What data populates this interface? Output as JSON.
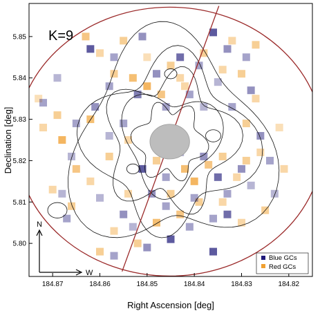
{
  "chart_data": {
    "type": "heatmap",
    "panel_label": "K=9",
    "xlabel": "Right Ascension [deg]",
    "ylabel": "Declination [deg]",
    "xlim": [
      184.875,
      184.815
    ],
    "ylim": [
      5.792,
      5.858
    ],
    "x_axis_reversed": true,
    "xticks": [
      184.87,
      184.86,
      184.85,
      184.84,
      184.83,
      184.82
    ],
    "xtick_labels": [
      "184.87",
      "184.86",
      "184.85",
      "184.84",
      "184.83",
      "184.82"
    ],
    "yticks": [
      5.8,
      5.81,
      5.82,
      5.83,
      5.84,
      5.85
    ],
    "ytick_labels": [
      "5.80",
      "5.81",
      "5.82",
      "5.83",
      "5.84",
      "5.85"
    ],
    "grid": false,
    "legend_position": "bottom-right",
    "series": [
      {
        "name": "Blue GCs",
        "color": "#1f1a7a"
      },
      {
        "name": "Red GCs",
        "color": "#f0a030"
      }
    ],
    "outer_circle": {
      "center": [
        184.8452,
        5.8246
      ],
      "radius_deg": 0.0325,
      "color": "#9b2a2a"
    },
    "masked_center": {
      "center": [
        184.8452,
        5.8246
      ],
      "radius_deg": 0.0042,
      "color": "#bdbdbd"
    },
    "dividing_line": {
      "from": [
        184.8553,
        5.7932
      ],
      "to": [
        184.8348,
        5.8574
      ],
      "color": "#9b2a2a"
    },
    "compass": {
      "north_label": "N",
      "west_label": "W"
    },
    "blue_cells": [
      [
        184.862,
        5.847,
        0.9
      ],
      [
        184.858,
        5.838,
        0.5
      ],
      [
        184.852,
        5.836,
        0.7
      ],
      [
        184.848,
        5.841,
        0.6
      ],
      [
        184.846,
        5.833,
        0.5
      ],
      [
        184.843,
        5.845,
        0.8
      ],
      [
        184.839,
        5.843,
        0.5
      ],
      [
        184.836,
        5.851,
        0.9
      ],
      [
        184.835,
        5.839,
        0.4
      ],
      [
        184.833,
        5.847,
        0.6
      ],
      [
        184.829,
        5.845,
        0.5
      ],
      [
        184.828,
        5.837,
        0.6
      ],
      [
        184.855,
        5.829,
        0.5
      ],
      [
        184.858,
        5.826,
        0.4
      ],
      [
        184.861,
        5.833,
        0.6
      ],
      [
        184.865,
        5.829,
        0.5
      ],
      [
        184.866,
        5.821,
        0.4
      ],
      [
        184.851,
        5.818,
        0.9
      ],
      [
        184.846,
        5.816,
        0.5
      ],
      [
        184.843,
        5.822,
        0.4
      ],
      [
        184.838,
        5.821,
        0.6
      ],
      [
        184.835,
        5.816,
        0.8
      ],
      [
        184.833,
        5.812,
        0.5
      ],
      [
        184.83,
        5.818,
        0.6
      ],
      [
        184.828,
        5.814,
        0.4
      ],
      [
        184.836,
        5.806,
        0.5
      ],
      [
        184.833,
        5.807,
        0.8
      ],
      [
        184.841,
        5.804,
        0.5
      ],
      [
        184.845,
        5.801,
        0.9
      ],
      [
        184.85,
        5.799,
        0.6
      ],
      [
        184.853,
        5.804,
        0.4
      ],
      [
        184.846,
        5.809,
        0.5
      ],
      [
        184.857,
        5.797,
        0.5
      ],
      [
        184.855,
        5.807,
        0.6
      ],
      [
        184.86,
        5.811,
        0.4
      ],
      [
        184.867,
        5.806,
        0.5
      ],
      [
        184.868,
        5.812,
        0.4
      ],
      [
        184.872,
        5.834,
        0.5
      ],
      [
        184.869,
        5.84,
        0.4
      ],
      [
        184.857,
        5.845,
        0.5
      ],
      [
        184.851,
        5.85,
        0.6
      ],
      [
        184.841,
        5.836,
        0.5
      ],
      [
        184.838,
        5.833,
        0.4
      ],
      [
        184.832,
        5.833,
        0.5
      ],
      [
        184.826,
        5.826,
        0.6
      ],
      [
        184.824,
        5.82,
        0.5
      ],
      [
        184.823,
        5.812,
        0.4
      ],
      [
        184.84,
        5.811,
        0.5
      ],
      [
        184.849,
        5.812,
        0.6
      ],
      [
        184.836,
        5.798,
        0.9
      ]
    ],
    "red_cells": [
      [
        184.863,
        5.85,
        0.7
      ],
      [
        184.857,
        5.841,
        0.6
      ],
      [
        184.853,
        5.84,
        0.8
      ],
      [
        184.85,
        5.838,
        0.9
      ],
      [
        184.847,
        5.836,
        0.7
      ],
      [
        184.845,
        5.843,
        0.6
      ],
      [
        184.842,
        5.838,
        0.5
      ],
      [
        184.838,
        5.846,
        0.6
      ],
      [
        184.834,
        5.842,
        0.5
      ],
      [
        184.83,
        5.841,
        0.6
      ],
      [
        184.832,
        5.849,
        0.5
      ],
      [
        184.827,
        5.848,
        0.6
      ],
      [
        184.862,
        5.83,
        0.8
      ],
      [
        184.868,
        5.825,
        0.9
      ],
      [
        184.865,
        5.818,
        0.7
      ],
      [
        184.858,
        5.821,
        0.6
      ],
      [
        184.854,
        5.825,
        0.5
      ],
      [
        184.848,
        5.82,
        0.6
      ],
      [
        184.842,
        5.818,
        0.8
      ],
      [
        184.84,
        5.815,
        0.9
      ],
      [
        184.837,
        5.819,
        0.7
      ],
      [
        184.834,
        5.821,
        0.6
      ],
      [
        184.831,
        5.816,
        0.5
      ],
      [
        184.829,
        5.82,
        0.6
      ],
      [
        184.826,
        5.822,
        0.5
      ],
      [
        184.839,
        5.81,
        0.6
      ],
      [
        184.834,
        5.81,
        0.5
      ],
      [
        184.843,
        5.807,
        0.7
      ],
      [
        184.848,
        5.805,
        0.8
      ],
      [
        184.852,
        5.8,
        0.6
      ],
      [
        184.857,
        5.803,
        0.5
      ],
      [
        184.86,
        5.798,
        0.6
      ],
      [
        184.854,
        5.812,
        0.5
      ],
      [
        184.866,
        5.809,
        0.6
      ],
      [
        184.87,
        5.813,
        0.5
      ],
      [
        184.869,
        5.831,
        0.6
      ],
      [
        184.872,
        5.828,
        0.5
      ],
      [
        184.873,
        5.835,
        0.4
      ],
      [
        184.86,
        5.846,
        0.5
      ],
      [
        184.855,
        5.849,
        0.6
      ],
      [
        184.85,
        5.845,
        0.4
      ],
      [
        184.843,
        5.84,
        0.5
      ],
      [
        184.829,
        5.829,
        0.6
      ],
      [
        184.827,
        5.835,
        0.5
      ],
      [
        184.822,
        5.828,
        0.4
      ],
      [
        184.821,
        5.818,
        0.5
      ],
      [
        184.825,
        5.808,
        0.6
      ],
      [
        184.83,
        5.805,
        0.5
      ],
      [
        184.845,
        5.812,
        0.6
      ],
      [
        184.862,
        5.815,
        0.5
      ]
    ]
  }
}
